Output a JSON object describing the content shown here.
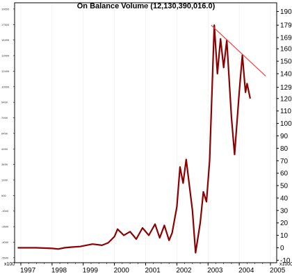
{
  "chart_data": {
    "type": "line",
    "title": "On Balance Volume (12,130,390,016.0)",
    "x_tick_labels": [
      "1997",
      "1998",
      "1999",
      "2000",
      "2001",
      "2002",
      "2003",
      "2004",
      "2005"
    ],
    "x_unit_label": "x100",
    "right_axis": {
      "ticks": [
        190,
        179,
        169,
        160,
        150,
        140,
        129,
        120,
        110,
        100,
        90,
        80,
        70,
        60,
        50,
        40,
        30,
        20,
        10,
        0,
        -10
      ],
      "unit_label": "x1000"
    },
    "left_axis": {
      "ticks": [
        19000,
        17500,
        15499,
        13999,
        12499,
        10999,
        9499,
        7999,
        6499,
        4999,
        3499,
        1999,
        500,
        -1000,
        -2500,
        -4000,
        -5500
      ]
    },
    "ylim": [
      -12,
      197
    ],
    "xlim": [
      1996.8,
      2005.2
    ],
    "series": [
      {
        "color": "#8b0000",
        "x": [
          1996.9,
          1997.5,
          1998.0,
          1998.2,
          1998.4,
          1998.6,
          1998.9,
          1999.1,
          1999.3,
          1999.6,
          1999.8,
          2000.0,
          2000.1,
          2000.3,
          2000.5,
          2000.7,
          2000.9,
          2001.1,
          2001.3,
          2001.45,
          2001.6,
          2001.75,
          2001.85,
          2002.0,
          2002.1,
          2002.2,
          2002.3,
          2002.5,
          2002.6,
          2002.75,
          2002.85,
          2002.95,
          2003.05,
          2003.2,
          2003.3,
          2003.4,
          2003.5,
          2003.6,
          2003.75,
          2003.85,
          2004.0,
          2004.1,
          2004.2,
          2004.25,
          2004.35
        ],
        "y": [
          0,
          0,
          -0.5,
          -1,
          0,
          0.5,
          1,
          2,
          3,
          2,
          4,
          9,
          15,
          10,
          13,
          7,
          16,
          10,
          19,
          8,
          18,
          6,
          12,
          33,
          65,
          52,
          71,
          30,
          -4,
          20,
          45,
          37,
          70,
          179,
          140,
          168,
          145,
          167,
          105,
          75,
          125,
          155,
          125,
          132,
          120
        ]
      }
    ],
    "trendline": {
      "color": "#ff3b3b",
      "x": [
        2003.1,
        2004.85
      ],
      "y": [
        179,
        138
      ]
    }
  }
}
